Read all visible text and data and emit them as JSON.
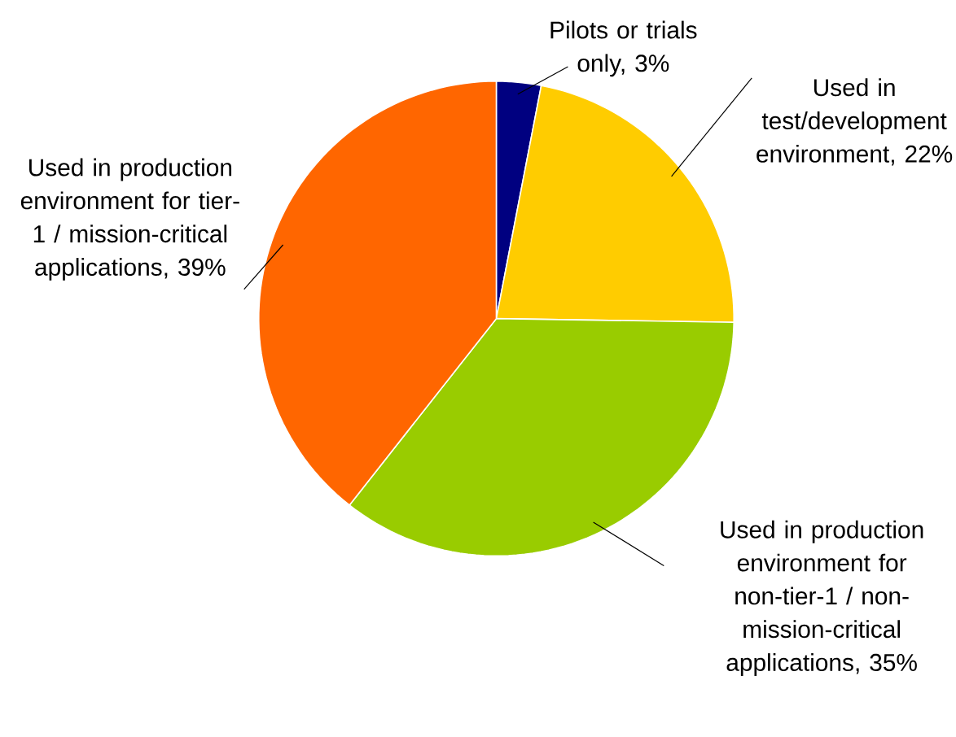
{
  "chart_data": {
    "type": "pie",
    "categories": [
      "Pilots or trials only, 3%",
      "Used in test/development environment, 22%",
      "Used in production environment for non-tier-1 / non-mission-critical applications, 35%",
      "Used in production environment for tier-1 / mission-critical applications, 39%"
    ],
    "values": [
      3,
      22,
      35,
      39
    ],
    "colors": [
      "#000080",
      "#ffcc00",
      "#99cc00",
      "#ff6600"
    ]
  }
}
